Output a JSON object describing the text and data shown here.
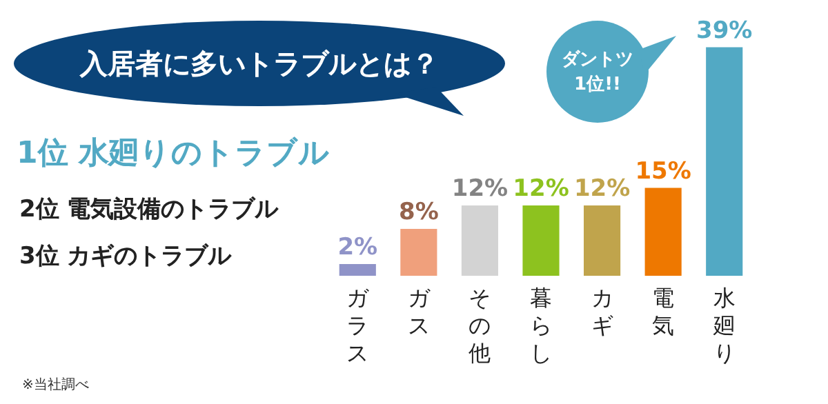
{
  "chart_data": {
    "type": "bar",
    "title": "入居者に多いトラブルとは？",
    "categories": [
      "ガラス",
      "ガス",
      "その他",
      "暮らし",
      "カギ",
      "電気",
      "水廻り"
    ],
    "values": [
      2,
      8,
      12,
      12,
      12,
      15,
      39
    ],
    "colors": [
      "#8f93c8",
      "#f0a07c",
      "#d3d3d3",
      "#8dc21f",
      "#c0a44c",
      "#ee7800",
      "#52a9c4"
    ],
    "value_labels": [
      "2%",
      "8%",
      "12%",
      "12%",
      "12%",
      "15%",
      "39%"
    ],
    "annotations": [
      "ダントツ1位!!",
      "1位 水廻りのトラブル",
      "2位 電気設備のトラブル",
      "3位 カギのトラブル",
      "※当社調べ"
    ]
  }
}
